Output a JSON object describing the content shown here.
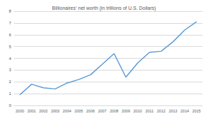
{
  "chart_data": {
    "type": "line",
    "title": "Billionaires' net worth (in trillions of U.S. Dollars)",
    "categories": [
      "2000",
      "2001",
      "2002",
      "2003",
      "2004",
      "2005",
      "2006",
      "2007",
      "2008",
      "2009",
      "2010",
      "2011",
      "2012",
      "2013",
      "2014",
      "2015"
    ],
    "values": [
      0.9,
      1.8,
      1.5,
      1.4,
      1.9,
      2.2,
      2.6,
      3.5,
      4.4,
      2.4,
      3.6,
      4.5,
      4.6,
      5.4,
      6.4,
      7.1
    ],
    "color": "#5b9bd5",
    "ylim": [
      0,
      8
    ],
    "yticks": [
      0,
      1,
      2,
      3,
      4,
      5,
      6,
      7,
      8
    ],
    "grid": true
  }
}
